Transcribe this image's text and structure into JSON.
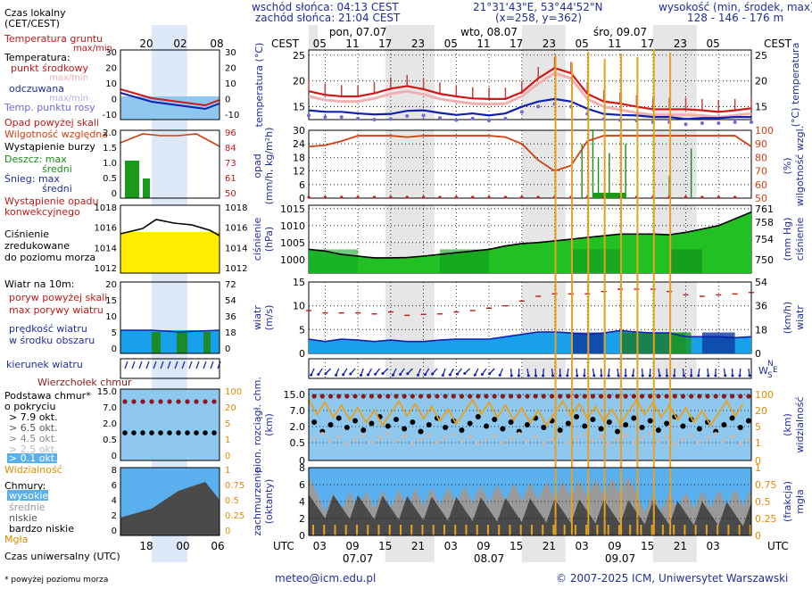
{
  "header": {
    "sunrise": "wschód słońca: 04:13 CEST",
    "sunset": "zachód słońca: 21:04 CEST",
    "coords": "21°31'43\"E, 53°44'52\"N",
    "grid": "(x=258, y=362)",
    "height_label": "wysokość (min, środek, max)",
    "height_values": "128 - 146 - 176 m"
  },
  "left_labels": {
    "local_time": "Czas lokalny (CET/CEST)",
    "local_time_line1": "Czas lokalny",
    "local_time_line2": "(CET/CEST)",
    "ground_temp": "Temperatura gruntu",
    "ground_temp_sub": "max/min",
    "temperature": "Temperatura:",
    "mid_point": "punkt środkowy",
    "max_min_a": "max/min",
    "felt": "odczuwana",
    "max_min_b": "max/min",
    "dew": "Temp. punktu rosy",
    "rainfall_above": "Opad powyżej skali",
    "humidity": "Wilgotność względna",
    "storm": "Wystąpienie burzy",
    "rain_max": "Deszcz: max",
    "rain_mean": "średni",
    "snow_max": "Śnieg:  max",
    "snow_mean": "średni",
    "conv1": "Wystąpienie opadu",
    "conv2": "konwekcyjnego",
    "pressure1": "Ciśnienie",
    "pressure2": "zredukowane",
    "pressure3": "do poziomu morza",
    "wind_at": "Wiatr na 10m:",
    "gust_above": "poryw powyżej skali",
    "max_gust": "max porywy wiatru",
    "wind_speed1": "prędkość wiatru",
    "wind_speed2": "w środku obszaru",
    "wind_dir": "kierunek wiatru",
    "cloud_top": "Wierzchołek chmur",
    "cloud_base1": "Podstawa chmur*",
    "cloud_base2": "o pokryciu",
    "okt1": "> 7.9 okt.",
    "okt2": "> 6.5 okt.",
    "okt3": "> 4.5 okt.",
    "okt4": "> 2.5 okt.",
    "okt5": "> 0.1 okt.",
    "visibility": "Widzialność",
    "clouds": "Chmury:",
    "high": "wysokie",
    "medium": "średnie",
    "low": "niskie",
    "very_low": "bardzo niskie",
    "fog": "Mgła",
    "utc": "Czas uniwersalny (UTC)",
    "footnote": "* powyżej poziomu morza"
  },
  "legend_time": {
    "local_ticks": [
      "20",
      "02",
      "08"
    ],
    "utc_ticks": [
      "18",
      "00",
      "06"
    ]
  },
  "legend_axes": {
    "temp_left": [
      "30",
      "20",
      "10",
      "0",
      "-10"
    ],
    "temp_right": [
      "30",
      "20",
      "10",
      "0",
      "-10"
    ],
    "precip_left": [
      "2.0",
      "1.5",
      "1.0",
      "0.5",
      "0"
    ],
    "precip_right": [
      "96",
      "84",
      "73",
      "61",
      "50"
    ],
    "pres_left": [
      "1018",
      "1016",
      "1014",
      "1012"
    ],
    "pres_right": [
      "1018",
      "1016",
      "1014",
      "1012"
    ],
    "wind_left": [
      "20",
      "15",
      "10",
      "5",
      "0"
    ],
    "wind_right": [
      "72",
      "54",
      "36",
      "18",
      "0"
    ],
    "cloud_left": [
      "15.0",
      "7.0",
      "2.0",
      "0.5",
      "0"
    ],
    "cloud_right": [
      "100",
      "20",
      "5",
      "1",
      "0"
    ],
    "cover_left": [
      "8",
      "6",
      "4",
      "2",
      "0"
    ],
    "cover_right": [
      "1",
      "0.75",
      "0.5",
      "0.25",
      "0"
    ]
  },
  "main": {
    "cest_left": "CEST",
    "cest_right": "CEST",
    "utc_left": "UTC",
    "utc_right": "UTC",
    "day_labels_top": [
      "pon, 07.07",
      "wto, 08.07",
      "śro, 09.07"
    ],
    "hour_ticks_top": [
      "05",
      "11",
      "17",
      "23",
      "05",
      "11",
      "17",
      "23",
      "05",
      "11",
      "17",
      "23",
      "05"
    ],
    "hour_ticks_bottom": [
      "03",
      "09",
      "15",
      "21",
      "03",
      "09",
      "15",
      "21",
      "03",
      "09",
      "15",
      "21",
      "03"
    ],
    "day_labels_bottom": [
      "07.07",
      "08.07",
      "09.07"
    ],
    "panel_titles": {
      "temp_left": "temperatura (°C)",
      "temp_right": "(°C) temperatura",
      "precip_left1": "opad",
      "precip_left2": "(mm/h, kg/m²h)",
      "precip_right1": "(%)",
      "precip_right2": "wilgotność wzgl.",
      "pres_left1": "ciśnienie",
      "pres_left2": "(hPa)",
      "pres_right1": "(mm Hg)",
      "pres_right2": "ciśnienie",
      "wind_left1": "wiatr",
      "wind_left2": "(m/s)",
      "wind_right1": "(km/h)",
      "wind_right2": "wiatr",
      "cloud_left1": "pion. rozciągł. chm.",
      "cloud_left2": "(km)",
      "cloud_right1": "(km)",
      "cloud_right2": "widzialność",
      "cover_left1": "zachmurzenie",
      "cover_left2": "(oktanty)",
      "cover_right1": "(frakcja)",
      "cover_right2": "mgła"
    },
    "axes": {
      "temp_left": [
        "25",
        "20",
        "15"
      ],
      "temp_right": [
        "25",
        "20",
        "15"
      ],
      "precip_left": [
        "30",
        "24",
        "18",
        "12",
        "6",
        "0"
      ],
      "precip_right": [
        "100",
        "90",
        "80",
        "70",
        "60",
        "50"
      ],
      "pres_left": [
        "1015",
        "1010",
        "1005",
        "1000"
      ],
      "pres_right": [
        "761",
        "758",
        "754",
        "750"
      ],
      "wind_left": [
        "15",
        "10",
        "5",
        "0"
      ],
      "wind_right": [
        "54",
        "36",
        "18",
        "0"
      ],
      "cloud_left": [
        "15.0",
        "7.0",
        "2.0",
        "0.5",
        "0"
      ],
      "cloud_right": [
        "100",
        "20",
        "5",
        "1",
        "0"
      ],
      "cover_left": [
        "8",
        "6",
        "4",
        "2",
        "0"
      ],
      "cover_right": [
        "1",
        "0.75",
        "0.5",
        "0.25",
        "0"
      ]
    }
  },
  "footer": {
    "email": "meteo@icm.edu.pl",
    "copyright": "© 2007-2025 ICM, Uniwersytet Warszawski"
  },
  "chart_data": {
    "type": "line",
    "x_hours": [
      0,
      3,
      6,
      9,
      12,
      15,
      18,
      21,
      24,
      27,
      30,
      33,
      36,
      39,
      42,
      45,
      48,
      51,
      54,
      57,
      60,
      63,
      66,
      69,
      72,
      75,
      78,
      81
    ],
    "temperature": [
      18,
      17.3,
      17,
      17,
      17.6,
      18.5,
      19,
      18.4,
      17.5,
      17,
      16.6,
      16.5,
      16.5,
      17.8,
      20.5,
      22.5,
      21.5,
      17.5,
      16,
      15.6,
      15,
      14.5,
      14.5,
      14.5,
      14.3,
      14,
      14.3,
      14.7
    ],
    "felt_temperature": [
      17,
      16.3,
      16,
      16,
      16.6,
      17.5,
      18,
      17.4,
      16.5,
      16,
      15.6,
      15.5,
      15.6,
      17,
      19.5,
      21.5,
      20.5,
      16.5,
      15,
      14.4,
      13.8,
      13.4,
      13.4,
      13.4,
      13.3,
      13,
      13.3,
      13.7
    ],
    "dew_point": [
      14.3,
      14,
      14,
      13.7,
      13.5,
      13.6,
      14.2,
      14.3,
      13.8,
      13.4,
      13.7,
      13.3,
      13.7,
      15,
      16,
      16.5,
      16,
      14.6,
      13.6,
      13.4,
      13.3,
      13,
      13,
      12.6,
      12.8,
      12.8,
      13,
      13
    ],
    "humidity": [
      88,
      89,
      92,
      96,
      96,
      96,
      95,
      96,
      96,
      96,
      96,
      96,
      95,
      90,
      78,
      70,
      74,
      92,
      96,
      96,
      96,
      96,
      96,
      96,
      96,
      96,
      96,
      88
    ],
    "pressure": [
      1003,
      1002.5,
      1001.5,
      1001,
      1000.5,
      1000.5,
      1000.6,
      1001,
      1001.5,
      1002,
      1002.5,
      1003,
      1004,
      1004.7,
      1005,
      1005.5,
      1006,
      1006.5,
      1007,
      1007.5,
      1007.5,
      1007.5,
      1007.3,
      1008,
      1009,
      1010,
      1012,
      1014
    ],
    "wind_speed": [
      3,
      2.5,
      3,
      2.8,
      2.5,
      2.8,
      2.5,
      2.5,
      2.8,
      3,
      3,
      3,
      3.5,
      4,
      4.5,
      4.5,
      4.3,
      4,
      4.3,
      4.8,
      4.5,
      4.3,
      4.3,
      3.5,
      3.5,
      3.5,
      3.3,
      3.5
    ],
    "wind_gust": [
      9,
      8.5,
      8.5,
      8.5,
      8.3,
      8.7,
      8,
      8.2,
      8.3,
      8.7,
      9,
      9.5,
      10,
      11,
      12,
      12.5,
      12.5,
      12.5,
      13,
      13.5,
      13.5,
      13.5,
      13,
      12.3,
      12,
      12.3,
      12.5,
      12.8
    ],
    "precip_spikes": [
      [
        50,
        24
      ],
      [
        52,
        30
      ],
      [
        53,
        18
      ],
      [
        55,
        20
      ],
      [
        58,
        24
      ],
      [
        66,
        10
      ],
      [
        70,
        22
      ]
    ]
  }
}
